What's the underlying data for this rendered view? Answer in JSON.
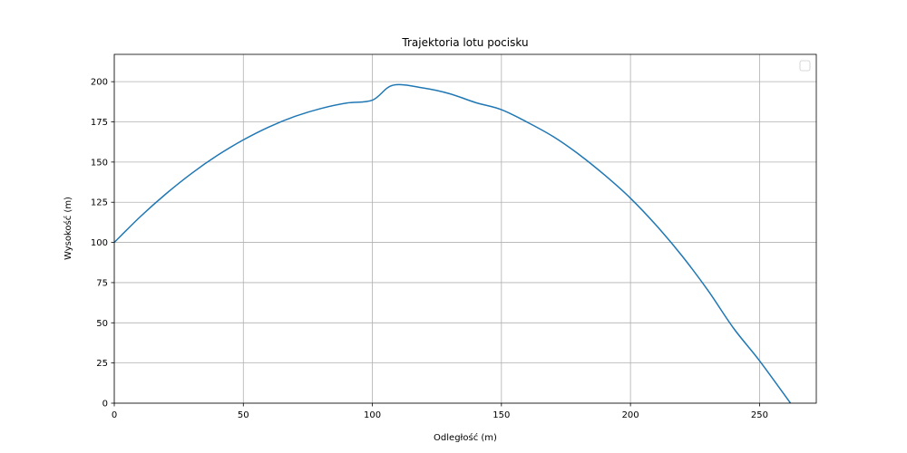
{
  "chart_data": {
    "type": "line",
    "title": "Trajektoria lotu pocisku",
    "xlabel": "Odległość (m)",
    "ylabel": "Wysokość (m)",
    "xlim": [
      0,
      272
    ],
    "ylim": [
      0,
      217
    ],
    "xticks": [
      0,
      50,
      100,
      150,
      200,
      250
    ],
    "yticks": [
      0,
      25,
      50,
      75,
      100,
      125,
      150,
      175,
      200
    ],
    "grid": true,
    "legend": {
      "placement": "top-right",
      "entries": []
    },
    "colors": {
      "series": "#1f77b4",
      "grid": "#b0b0b0"
    },
    "series": [
      {
        "x": [
          0,
          10,
          20,
          30,
          40,
          50,
          60,
          70,
          80,
          90,
          100,
          108,
          120,
          130,
          140,
          150,
          160,
          170,
          180,
          190,
          200,
          210,
          220,
          230,
          240,
          250,
          262
        ],
        "y": [
          100,
          115.9,
          130.2,
          143.0,
          154.2,
          163.8,
          171.9,
          178.4,
          183.3,
          186.7,
          188.5,
          197.8,
          196.0,
          192.5,
          187.0,
          182.6,
          174.8,
          165.9,
          154.8,
          141.9,
          127.5,
          110.6,
          91.6,
          70.2,
          46.5,
          26.4,
          0
        ]
      }
    ]
  }
}
